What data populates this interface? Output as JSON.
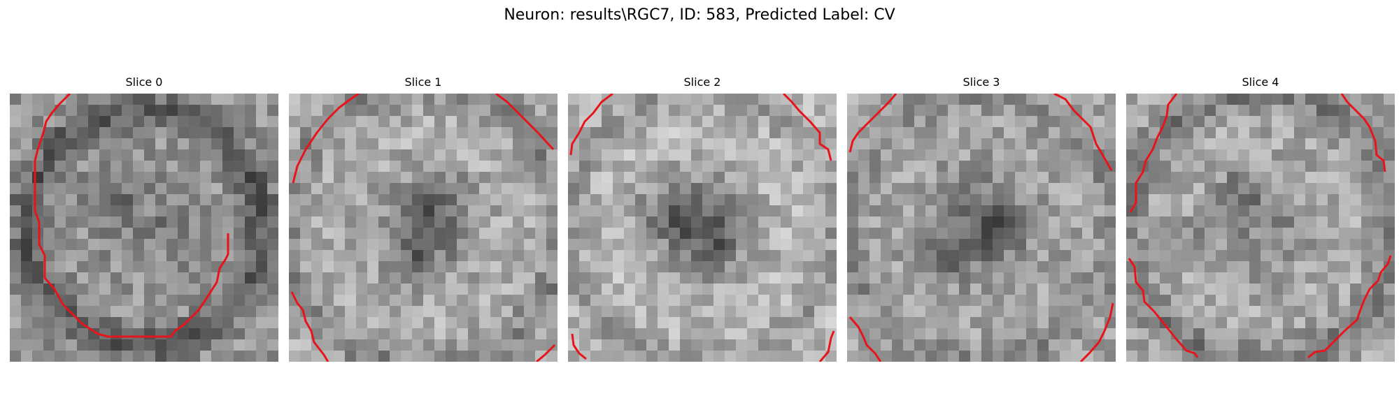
{
  "figure": {
    "title": "Neuron: results\\RGC7, ID: 583, Predicted Label: CV"
  },
  "slices": [
    {
      "label": "Slice 0"
    },
    {
      "label": "Slice 1"
    },
    {
      "label": "Slice 2"
    },
    {
      "label": "Slice 3"
    },
    {
      "label": "Slice 4"
    }
  ],
  "style": {
    "contour_color": "#e8141b",
    "colormap": "gray"
  }
}
